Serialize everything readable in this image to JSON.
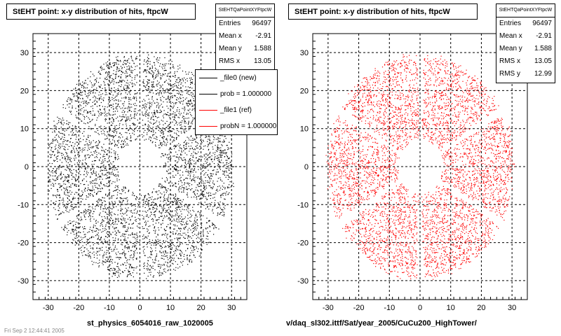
{
  "chart_data": [
    {
      "type": "scatter",
      "title": "StEHT point: x-y distribution of hits, ftpcW",
      "xlabel": "st_physics_6054016_raw_1020005",
      "ylabel": "",
      "xlim": [
        -35,
        35
      ],
      "ylim": [
        -35,
        35
      ],
      "xticks": [
        -30,
        -20,
        -10,
        0,
        10,
        20,
        30
      ],
      "yticks": [
        -30,
        -20,
        -10,
        0,
        10,
        20,
        30
      ],
      "grid": true,
      "color": "#000000",
      "distribution": {
        "inner_radius": 7,
        "outer_radius": 29,
        "sector_count": 6,
        "sector_gap_degrees": [
          90,
          150,
          210,
          270,
          330,
          30
        ]
      },
      "stats": {
        "name": "StEHTQaPointXYFtpcW",
        "entries_label": "Entries",
        "entries": "96497",
        "mean_x_label": "Mean x",
        "mean_x": "-2.91",
        "mean_y_label": "Mean y",
        "mean_y": "1.588",
        "rms_x_label": "RMS x",
        "rms_x": "13.05"
      },
      "legend": [
        {
          "label": "_file0 (new)",
          "color": "#000000"
        },
        {
          "label": "prob = 1.000000",
          "color": "#000000"
        },
        {
          "label": "_file1 (ref)",
          "color": "#ff0000"
        },
        {
          "label": "probN = 1.000000",
          "color": "#ff0000"
        }
      ],
      "legend_position": "top-right"
    },
    {
      "type": "scatter",
      "title": "StEHT point: x-y distribution of hits, ftpcW",
      "xlabel": "v/daq_sl302.ittf/Sat/year_2005/CuCu200_HighTower/",
      "ylabel": "",
      "xlim": [
        -35,
        35
      ],
      "ylim": [
        -35,
        35
      ],
      "xticks": [
        -30,
        -20,
        -10,
        0,
        10,
        20,
        30
      ],
      "yticks": [
        -30,
        -20,
        -10,
        0,
        10,
        20,
        30
      ],
      "grid": true,
      "color": "#ff0000",
      "distribution": {
        "inner_radius": 7,
        "outer_radius": 29,
        "sector_count": 6,
        "sector_gap_degrees": [
          90,
          150,
          210,
          270,
          330,
          30
        ]
      },
      "stats": {
        "name": "StEHTQaPointXYFtpcW",
        "entries_label": "Entries",
        "entries": "96497",
        "mean_x_label": "Mean x",
        "mean_x": "-2.91",
        "mean_y_label": "Mean y",
        "mean_y": "1.588",
        "rms_x_label": "RMS x",
        "rms_x": "13.05",
        "rms_y_label": "RMS y",
        "rms_y": "12.99"
      }
    }
  ],
  "footer": "Fri Sep 2 12:44:41 2005"
}
